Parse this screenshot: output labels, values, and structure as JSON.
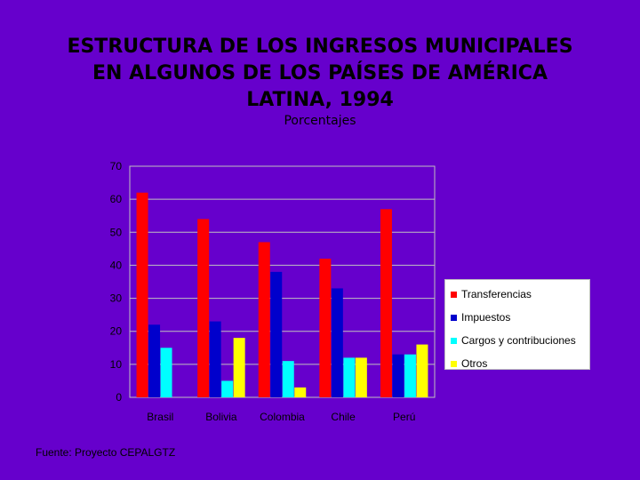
{
  "title_lines": [
    "ESTRUCTURA DE LOS INGRESOS MUNICIPALES",
    "EN ALGUNOS DE LOS PAÍSES DE AMÉRICA",
    "LATINA, 1994"
  ],
  "subtitle": "Porcentajes",
  "source": "Fuente: Proyecto CEPALGTZ",
  "colors": {
    "background": "#6600cc",
    "plot_border": "#c0c0c0"
  },
  "chart_data": {
    "type": "bar",
    "title": "ESTRUCTURA DE LOS INGRESOS MUNICIPALES EN ALGUNOS DE LOS PAÍSES DE AMÉRICA LATINA, 1994",
    "subtitle": "Porcentajes",
    "categories": [
      "Brasil",
      "Bolivia",
      "Colombia",
      "Chile",
      "Perú"
    ],
    "series": [
      {
        "name": "Transferencias",
        "color": "#ff0000",
        "values": [
          62,
          54,
          47,
          42,
          57
        ]
      },
      {
        "name": "Impuestos",
        "color": "#0000cc",
        "values": [
          22,
          23,
          38,
          33,
          13
        ]
      },
      {
        "name": "Cargos y contribuciones",
        "color": "#00ffff",
        "values": [
          15,
          5,
          11,
          12,
          13
        ]
      },
      {
        "name": "Otros",
        "color": "#ffff00",
        "values": [
          0,
          18,
          3,
          12,
          16
        ]
      }
    ],
    "ylim": [
      0,
      70
    ],
    "yticks": [
      0,
      10,
      20,
      30,
      40,
      50,
      60,
      70
    ],
    "grid": true,
    "legend_position": "right"
  }
}
